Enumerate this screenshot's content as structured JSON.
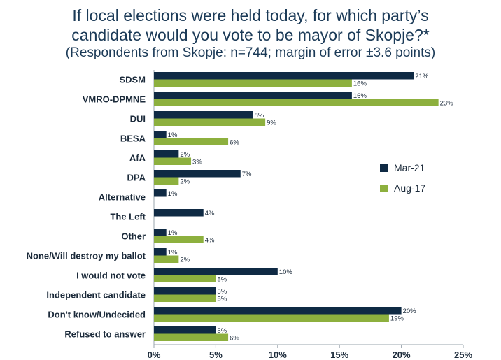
{
  "chart_data": {
    "type": "bar",
    "orientation": "horizontal",
    "title": "If local elections were held today, for which party’s candidate would you vote to be mayor of Skopje?*",
    "title_lines": [
      "If local elections were held today, for which party’s",
      "candidate would you vote to be mayor of Skopje?*"
    ],
    "subtitle": "(Respondents from Skopje: n=744; margin of error ±3.6 points)",
    "categories": [
      "SDSM",
      "VMRO-DPMNE",
      "DUI",
      "BESA",
      "AfA",
      "DPA",
      "Alternative",
      "The Left",
      "Other",
      "None/Will destroy my ballot",
      "I would not vote",
      "Independent candidate",
      "Don't know/Undecided",
      "Refused to answer"
    ],
    "series": [
      {
        "name": "Mar-21",
        "color": "#0f2a44",
        "values": [
          21,
          16,
          8,
          1,
          2,
          7,
          1,
          4,
          1,
          1,
          10,
          5,
          20,
          5
        ],
        "labels": [
          "21%",
          "16%",
          "8%",
          "1%",
          "2%",
          "7%",
          "1%",
          "4%",
          "1%",
          "1%",
          "10%",
          "5%",
          "20%",
          "5%"
        ]
      },
      {
        "name": "Aug-17",
        "color": "#8db03e",
        "values": [
          16,
          23,
          9,
          6,
          3,
          2,
          null,
          null,
          4,
          2,
          5,
          5,
          19,
          6
        ],
        "labels": [
          "16%",
          "23%",
          "9%",
          "6%",
          "3%",
          "2%",
          null,
          null,
          "4%",
          "2%",
          "5%",
          "5%",
          "19%",
          "6%"
        ]
      }
    ],
    "xlim": [
      0,
      25
    ],
    "xticks": [
      0,
      5,
      10,
      15,
      20,
      25
    ],
    "xtick_labels": [
      "0%",
      "5%",
      "10%",
      "15%",
      "20%",
      "25%"
    ],
    "xlabel": "",
    "ylabel": "",
    "grid": false,
    "legend_position": "right"
  }
}
